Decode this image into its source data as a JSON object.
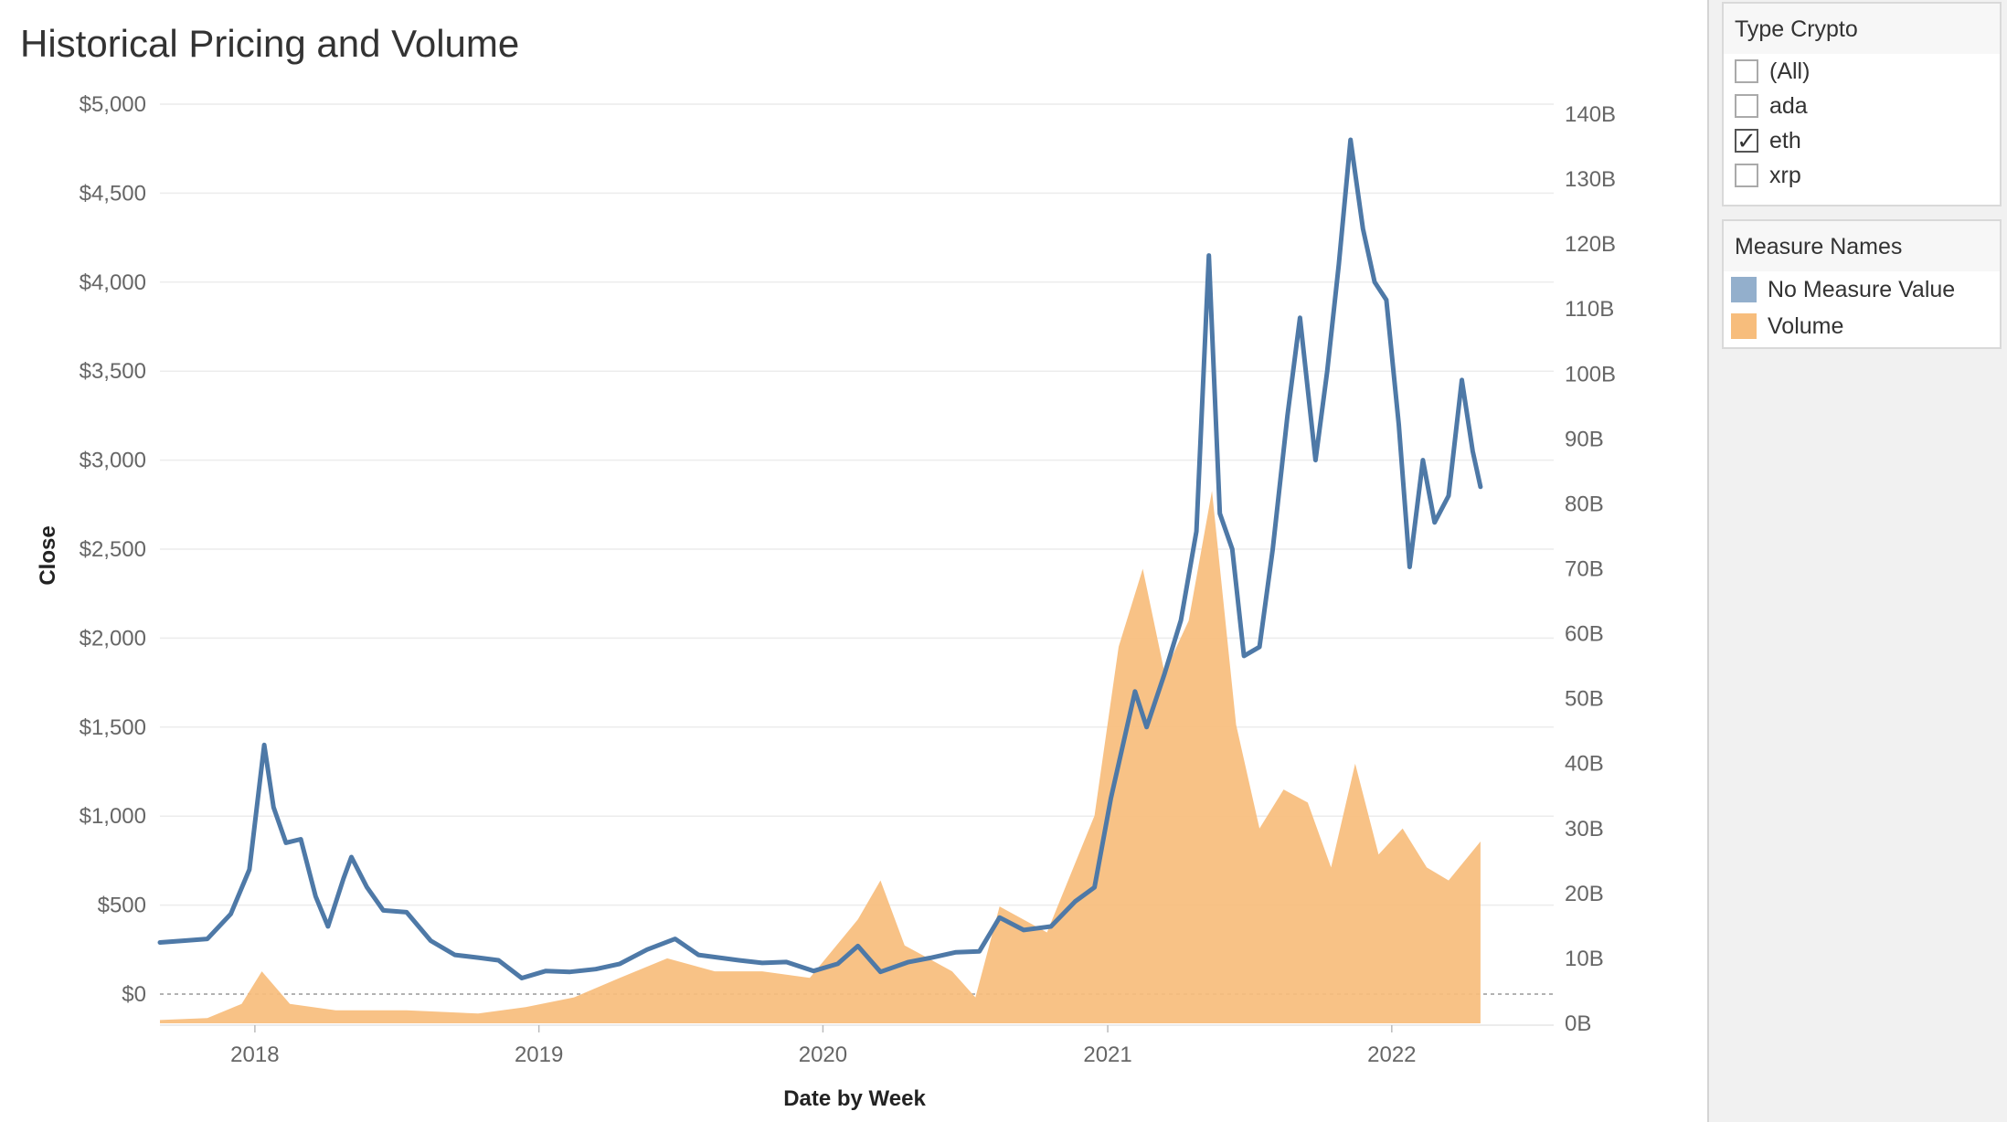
{
  "title": "Historical Pricing and Volume",
  "filter": {
    "title": "Type Crypto",
    "options": [
      {
        "label": "(All)",
        "checked": false
      },
      {
        "label": "ada",
        "checked": false
      },
      {
        "label": "eth",
        "checked": true
      },
      {
        "label": "xrp",
        "checked": false
      }
    ],
    "check_glyph": "✓"
  },
  "legend": {
    "title": "Measure Names",
    "items": [
      {
        "label": "No Measure Value",
        "color": "#93afcc"
      },
      {
        "label": "Volume",
        "color": "#f7bd7c"
      }
    ]
  },
  "chart_data": {
    "type": "line",
    "xlabel": "Date by Week",
    "ylabel": "Close",
    "x_ticks": [
      "2018",
      "2019",
      "2020",
      "2021",
      "2022"
    ],
    "y_ticks_left": [
      "$5,000",
      "$4,500",
      "$4,000",
      "$3,500",
      "$3,000",
      "$2,500",
      "$2,000",
      "$1,500",
      "$1,000",
      "$500",
      "$0"
    ],
    "y_ticks_right": [
      "140B",
      "130B",
      "120B",
      "110B",
      "100B",
      "90B",
      "80B",
      "70B",
      "60B",
      "50B",
      "40B",
      "30B",
      "20B",
      "10B",
      "0B"
    ],
    "ylim_left": [
      0,
      5000
    ],
    "ylim_right": [
      0,
      140
    ],
    "x_range": [
      "2017-09-01",
      "2022-05-01"
    ],
    "close_color": "#4e79a7",
    "volume_color": "#f7bd7c",
    "grid": true,
    "series": [
      {
        "name": "Close",
        "axis": "left",
        "points": [
          [
            "2017-09-01",
            290
          ],
          [
            "2017-10-01",
            300
          ],
          [
            "2017-11-01",
            310
          ],
          [
            "2017-12-01",
            450
          ],
          [
            "2017-12-25",
            700
          ],
          [
            "2018-01-13",
            1400
          ],
          [
            "2018-01-25",
            1050
          ],
          [
            "2018-02-10",
            850
          ],
          [
            "2018-03-01",
            870
          ],
          [
            "2018-03-20",
            550
          ],
          [
            "2018-04-05",
            380
          ],
          [
            "2018-04-25",
            650
          ],
          [
            "2018-05-05",
            770
          ],
          [
            "2018-05-25",
            600
          ],
          [
            "2018-06-15",
            470
          ],
          [
            "2018-07-15",
            460
          ],
          [
            "2018-08-15",
            300
          ],
          [
            "2018-09-15",
            220
          ],
          [
            "2018-10-15",
            205
          ],
          [
            "2018-11-10",
            190
          ],
          [
            "2018-12-10",
            90
          ],
          [
            "2019-01-10",
            130
          ],
          [
            "2019-02-10",
            125
          ],
          [
            "2019-03-15",
            140
          ],
          [
            "2019-04-15",
            170
          ],
          [
            "2019-05-20",
            250
          ],
          [
            "2019-06-25",
            310
          ],
          [
            "2019-07-25",
            220
          ],
          [
            "2019-09-15",
            190
          ],
          [
            "2019-10-15",
            175
          ],
          [
            "2019-11-15",
            180
          ],
          [
            "2019-12-20",
            130
          ],
          [
            "2020-01-20",
            170
          ],
          [
            "2020-02-15",
            270
          ],
          [
            "2020-03-15",
            125
          ],
          [
            "2020-04-20",
            180
          ],
          [
            "2020-05-20",
            205
          ],
          [
            "2020-06-20",
            235
          ],
          [
            "2020-07-20",
            240
          ],
          [
            "2020-08-15",
            430
          ],
          [
            "2020-09-15",
            360
          ],
          [
            "2020-10-20",
            380
          ],
          [
            "2020-11-20",
            520
          ],
          [
            "2020-12-15",
            600
          ],
          [
            "2021-01-05",
            1100
          ],
          [
            "2021-02-05",
            1700
          ],
          [
            "2021-02-20",
            1500
          ],
          [
            "2021-03-15",
            1800
          ],
          [
            "2021-04-05",
            2100
          ],
          [
            "2021-04-25",
            2600
          ],
          [
            "2021-05-11",
            4150
          ],
          [
            "2021-05-25",
            2700
          ],
          [
            "2021-06-10",
            2500
          ],
          [
            "2021-06-25",
            1900
          ],
          [
            "2021-07-15",
            1950
          ],
          [
            "2021-08-01",
            2500
          ],
          [
            "2021-08-20",
            3250
          ],
          [
            "2021-09-05",
            3800
          ],
          [
            "2021-09-25",
            3000
          ],
          [
            "2021-10-10",
            3500
          ],
          [
            "2021-10-25",
            4100
          ],
          [
            "2021-11-09",
            4800
          ],
          [
            "2021-11-25",
            4300
          ],
          [
            "2021-12-10",
            4000
          ],
          [
            "2021-12-25",
            3900
          ],
          [
            "2022-01-10",
            3200
          ],
          [
            "2022-01-24",
            2400
          ],
          [
            "2022-02-10",
            3000
          ],
          [
            "2022-02-25",
            2650
          ],
          [
            "2022-03-15",
            2800
          ],
          [
            "2022-04-01",
            3450
          ],
          [
            "2022-04-15",
            3050
          ],
          [
            "2022-04-25",
            2850
          ]
        ]
      },
      {
        "name": "Volume",
        "axis": "right",
        "points": [
          [
            "2017-09-01",
            0.5
          ],
          [
            "2017-11-01",
            0.8
          ],
          [
            "2017-12-15",
            3
          ],
          [
            "2018-01-10",
            8
          ],
          [
            "2018-02-15",
            3
          ],
          [
            "2018-04-15",
            2
          ],
          [
            "2018-07-15",
            2
          ],
          [
            "2018-10-15",
            1.5
          ],
          [
            "2018-12-15",
            2.5
          ],
          [
            "2019-02-15",
            4
          ],
          [
            "2019-04-15",
            7
          ],
          [
            "2019-06-15",
            10
          ],
          [
            "2019-08-15",
            8
          ],
          [
            "2019-10-15",
            8
          ],
          [
            "2019-12-15",
            7
          ],
          [
            "2020-02-15",
            16
          ],
          [
            "2020-03-15",
            22
          ],
          [
            "2020-04-15",
            12
          ],
          [
            "2020-06-15",
            8
          ],
          [
            "2020-07-15",
            4
          ],
          [
            "2020-08-15",
            18
          ],
          [
            "2020-10-15",
            14
          ],
          [
            "2020-12-15",
            32
          ],
          [
            "2021-01-15",
            58
          ],
          [
            "2021-02-15",
            70
          ],
          [
            "2021-03-15",
            54
          ],
          [
            "2021-04-15",
            62
          ],
          [
            "2021-05-15",
            82
          ],
          [
            "2021-06-15",
            46
          ],
          [
            "2021-07-15",
            30
          ],
          [
            "2021-08-15",
            36
          ],
          [
            "2021-09-15",
            34
          ],
          [
            "2021-10-15",
            24
          ],
          [
            "2021-11-15",
            40
          ],
          [
            "2021-12-15",
            26
          ],
          [
            "2022-01-15",
            30
          ],
          [
            "2022-02-15",
            24
          ],
          [
            "2022-03-15",
            22
          ],
          [
            "2022-04-25",
            28
          ]
        ]
      }
    ]
  }
}
